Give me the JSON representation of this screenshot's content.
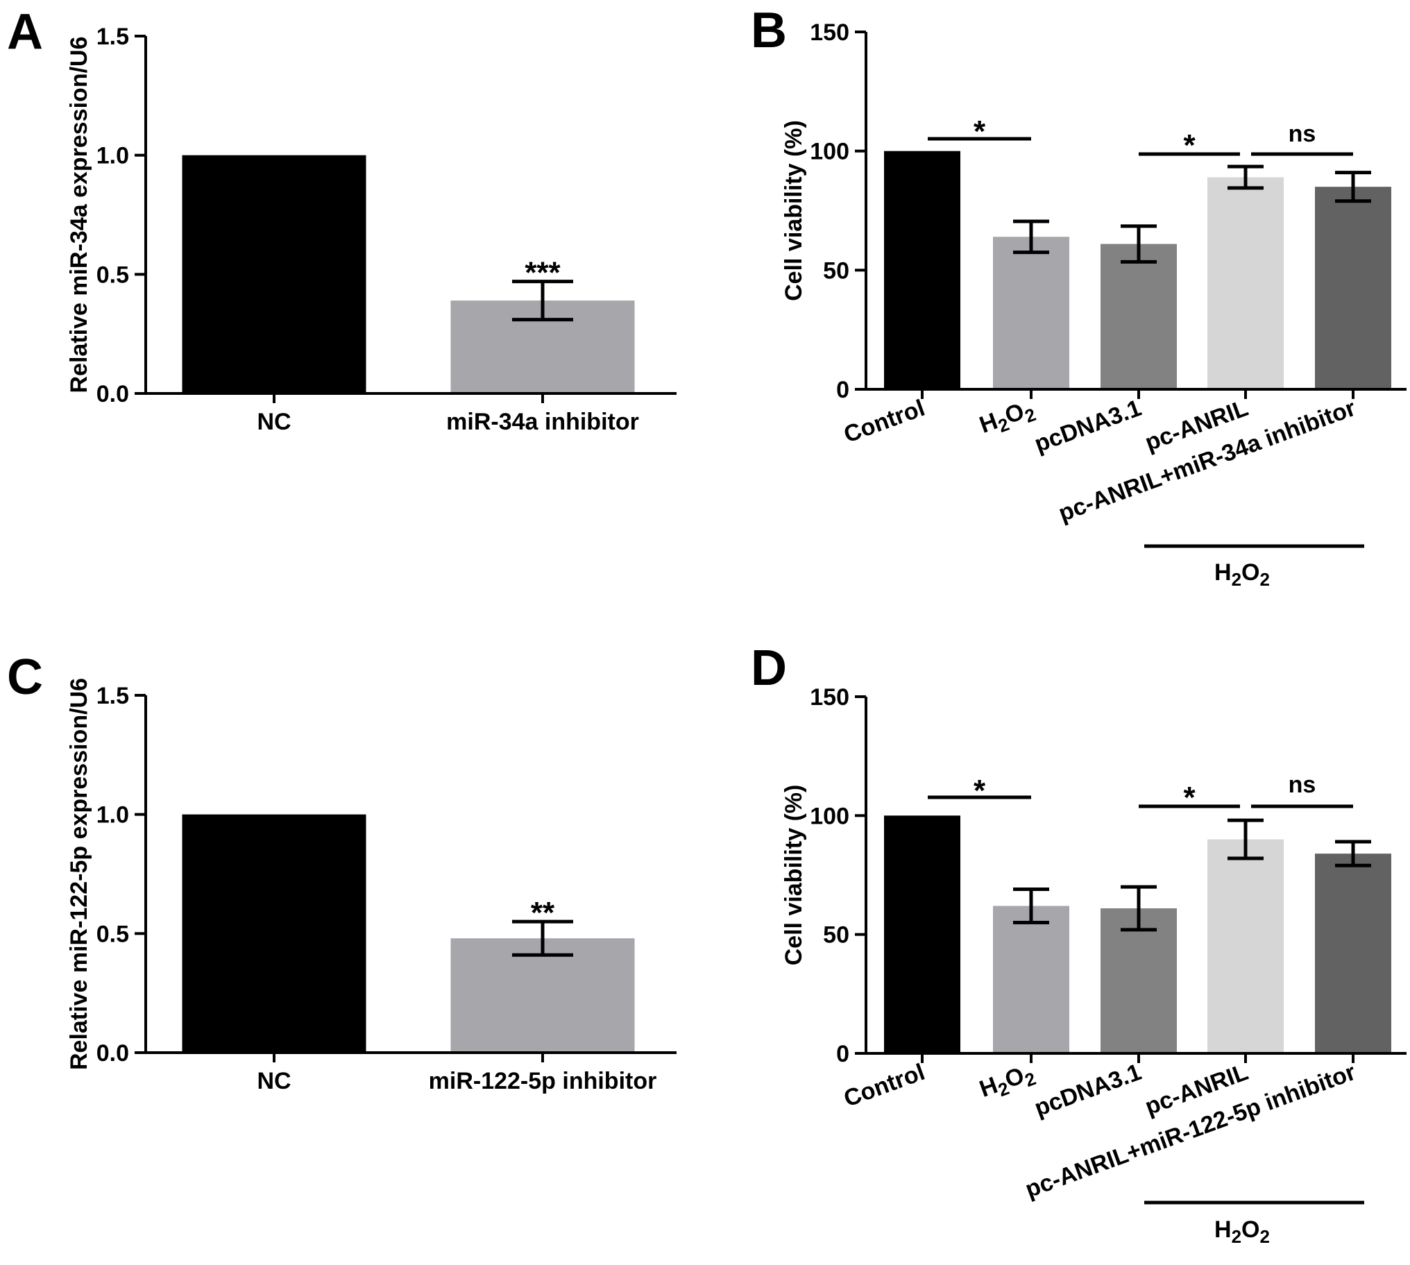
{
  "chart_data": [
    {
      "panel": "A",
      "type": "bar",
      "ylabel": "Relative miR-34a expression/U6",
      "ylim": [
        0,
        1.5
      ],
      "yticks": [
        "0.0",
        "0.5",
        "1.0",
        "1.5"
      ],
      "categories": [
        "NC",
        "miR-34a inhibitor"
      ],
      "values": [
        1.0,
        0.39
      ],
      "errors": [
        0,
        0.08
      ],
      "colors": [
        "#000000",
        "#a6a6ab"
      ],
      "annotations": [
        {
          "category": 1,
          "text": "***"
        }
      ]
    },
    {
      "panel": "B",
      "type": "bar",
      "ylabel": "Cell viability (%)",
      "ylim": [
        0,
        150
      ],
      "yticks": [
        "0",
        "50",
        "100",
        "150"
      ],
      "categories": [
        "Control",
        "H2O2",
        "pcDNA3.1",
        "pc-ANRIL",
        "pc-ANRIL+miR-34a inhibitor"
      ],
      "values": [
        100,
        64,
        61,
        89,
        85
      ],
      "errors": [
        0,
        6.5,
        7.5,
        4.5,
        6
      ],
      "colors": [
        "#000000",
        "#a6a6ab",
        "#828282",
        "#d6d6d6",
        "#626262"
      ],
      "comparisons": [
        {
          "from": 0,
          "to": 1,
          "text": "*"
        },
        {
          "from": 2,
          "to": 3,
          "text": "*"
        },
        {
          "from": 3,
          "to": 4,
          "text": "ns"
        }
      ],
      "group_label": {
        "from": 2,
        "to": 4,
        "text": "H2O2"
      }
    },
    {
      "panel": "C",
      "type": "bar",
      "ylabel": "Relative miR-122-5p expression/U6",
      "ylim": [
        0,
        1.5
      ],
      "yticks": [
        "0.0",
        "0.5",
        "1.0",
        "1.5"
      ],
      "categories": [
        "NC",
        "miR-122-5p inhibitor"
      ],
      "values": [
        1.0,
        0.48
      ],
      "errors": [
        0,
        0.07
      ],
      "colors": [
        "#000000",
        "#a6a6ab"
      ],
      "annotations": [
        {
          "category": 1,
          "text": "**"
        }
      ]
    },
    {
      "panel": "D",
      "type": "bar",
      "ylabel": "Cell viability (%)",
      "ylim": [
        0,
        150
      ],
      "yticks": [
        "0",
        "50",
        "100",
        "150"
      ],
      "categories": [
        "Control",
        "H2O2",
        "pcDNA3.1",
        "pc-ANRIL",
        "pc-ANRIL+miR-122-5p inhibitor"
      ],
      "values": [
        100,
        62,
        61,
        90,
        84
      ],
      "errors": [
        0,
        7,
        9,
        8,
        5
      ],
      "colors": [
        "#000000",
        "#a6a6ab",
        "#828282",
        "#d6d6d6",
        "#626262"
      ],
      "comparisons": [
        {
          "from": 0,
          "to": 1,
          "text": "*"
        },
        {
          "from": 2,
          "to": 3,
          "text": "*"
        },
        {
          "from": 3,
          "to": 4,
          "text": "ns"
        }
      ],
      "group_label": {
        "from": 2,
        "to": 4,
        "text": "H2O2"
      }
    }
  ]
}
